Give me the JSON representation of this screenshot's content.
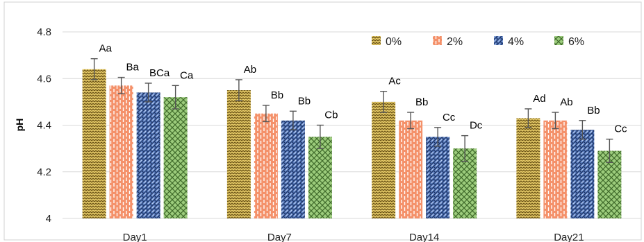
{
  "chart_data": {
    "type": "bar",
    "title": "",
    "xlabel": "",
    "ylabel": "pH",
    "ylim": [
      4,
      4.8
    ],
    "yticks": [
      4,
      4.2,
      4.4,
      4.6,
      4.8
    ],
    "grid": true,
    "legend_position": "top-right",
    "categories": [
      "Day1",
      "Day7",
      "Day14",
      "Day21"
    ],
    "series": [
      {
        "name": "0%",
        "color": "#d8b84a",
        "values": [
          4.64,
          4.55,
          4.5,
          4.43
        ],
        "errors": [
          0.045,
          0.045,
          0.045,
          0.04
        ],
        "labels": [
          "Aa",
          "Ab",
          "Ac",
          "Ad"
        ]
      },
      {
        "name": "2%",
        "color": "#f08a5a",
        "values": [
          4.57,
          4.45,
          4.42,
          4.42
        ],
        "errors": [
          0.035,
          0.035,
          0.035,
          0.035
        ],
        "labels": [
          "Ba",
          "Bb",
          "Bb",
          "Ab"
        ]
      },
      {
        "name": "4%",
        "color": "#4a6fb0",
        "values": [
          4.54,
          4.42,
          4.35,
          4.38
        ],
        "errors": [
          0.04,
          0.04,
          0.04,
          0.04
        ],
        "labels": [
          "BCa",
          "Bb",
          "Cc",
          "Bb"
        ]
      },
      {
        "name": "6%",
        "color": "#8cbf6a",
        "values": [
          4.52,
          4.35,
          4.3,
          4.29
        ],
        "errors": [
          0.05,
          0.05,
          0.055,
          0.05
        ],
        "labels": [
          "Ca",
          "Cb",
          "Dc",
          "Cc"
        ]
      }
    ]
  }
}
